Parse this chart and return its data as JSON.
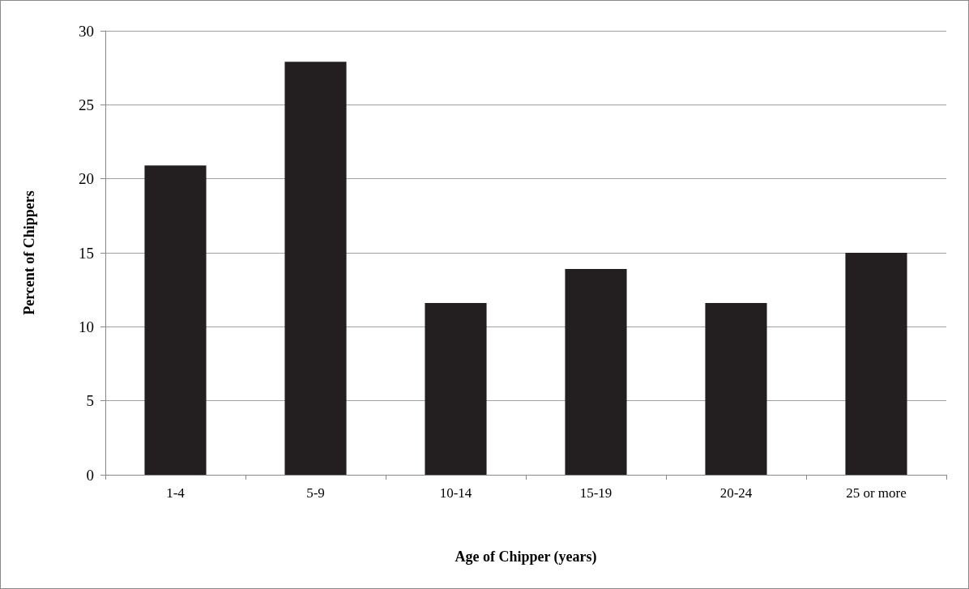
{
  "chart_data": {
    "type": "bar",
    "xlabel": "Age of Chipper (years)",
    "ylabel": "Percent of Chippers",
    "categories": [
      "1-4",
      "5-9",
      "10-14",
      "15-19",
      "20-24",
      "25 or more"
    ],
    "values": [
      20.9,
      27.9,
      11.6,
      13.9,
      11.6,
      15.0
    ],
    "color": "#231f20",
    "ylim": [
      0,
      30
    ],
    "yticks": [
      0,
      5,
      10,
      15,
      20,
      25,
      30
    ],
    "grid": "y"
  }
}
